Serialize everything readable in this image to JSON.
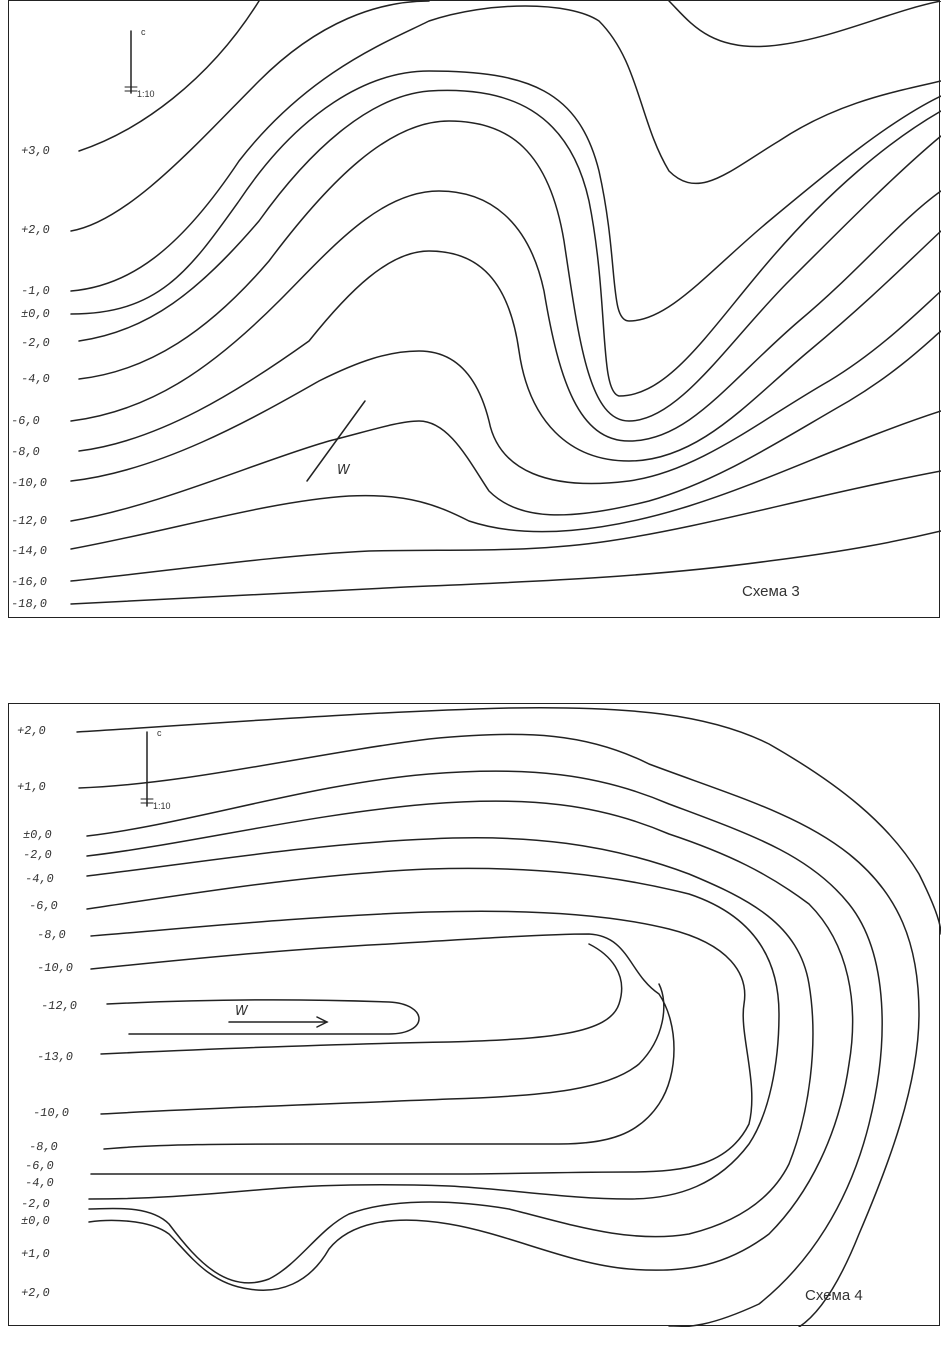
{
  "scheme3": {
    "caption": "Схема 3",
    "compass": {
      "north_label": "с",
      "scale_label": "1:10"
    },
    "wind_label": "W",
    "contour_labels": [
      "+3,0",
      "+2,0",
      "-1,0",
      "±0,0",
      "-2,0",
      "-4,0",
      "-6,0",
      "-8,0",
      "-10,0",
      "-12,0",
      "-14,0",
      "-16,0",
      "-18,0"
    ]
  },
  "scheme4": {
    "caption": "Схема 4",
    "compass": {
      "north_label": "с",
      "scale_label": "1:10"
    },
    "wind_label": "W",
    "contour_labels_top": [
      "+2,0",
      "+1,0",
      "±0,0",
      "-2,0",
      "-4,0",
      "-6,0",
      "-8,0",
      "-10,0",
      "-12,0",
      "-13,0"
    ],
    "contour_labels_bottom": [
      "-10,0",
      "-8,0",
      "-6,0",
      "-4,0",
      "-2,0",
      "±0,0",
      "+1,0",
      "+2,0"
    ]
  },
  "colors": {
    "ink": "#222222",
    "background": "#ffffff"
  }
}
